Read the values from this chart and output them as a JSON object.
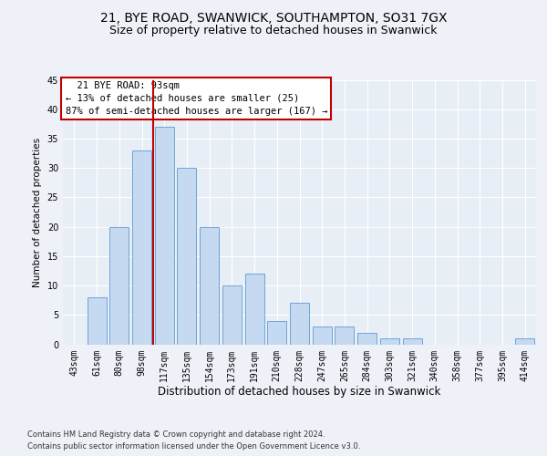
{
  "title1": "21, BYE ROAD, SWANWICK, SOUTHAMPTON, SO31 7GX",
  "title2": "Size of property relative to detached houses in Swanwick",
  "xlabel": "Distribution of detached houses by size in Swanwick",
  "ylabel": "Number of detached properties",
  "categories": [
    "43sqm",
    "61sqm",
    "80sqm",
    "98sqm",
    "117sqm",
    "135sqm",
    "154sqm",
    "173sqm",
    "191sqm",
    "210sqm",
    "228sqm",
    "247sqm",
    "265sqm",
    "284sqm",
    "303sqm",
    "321sqm",
    "340sqm",
    "358sqm",
    "377sqm",
    "395sqm",
    "414sqm"
  ],
  "values": [
    0,
    8,
    20,
    33,
    37,
    30,
    20,
    10,
    12,
    4,
    7,
    3,
    3,
    2,
    1,
    1,
    0,
    0,
    0,
    0,
    1
  ],
  "bar_color": "#c5d9f0",
  "bar_edge_color": "#5b9bd5",
  "vline_x": 3.5,
  "vline_color": "#c00000",
  "annotation_text": "  21 BYE ROAD: 93sqm  \n← 13% of detached houses are smaller (25)\n87% of semi-detached houses are larger (167) →",
  "annotation_box_color": "#ffffff",
  "annotation_box_edge": "#c00000",
  "ylim": [
    0,
    45
  ],
  "yticks": [
    0,
    5,
    10,
    15,
    20,
    25,
    30,
    35,
    40,
    45
  ],
  "footer1": "Contains HM Land Registry data © Crown copyright and database right 2024.",
  "footer2": "Contains public sector information licensed under the Open Government Licence v3.0.",
  "bg_color": "#eef2f8",
  "plot_bg_color": "#e8eef6",
  "grid_color": "#ffffff",
  "title1_fontsize": 10,
  "title2_fontsize": 9,
  "xlabel_fontsize": 8.5,
  "ylabel_fontsize": 7.5,
  "tick_fontsize": 7,
  "annot_fontsize": 7.5,
  "footer_fontsize": 6
}
